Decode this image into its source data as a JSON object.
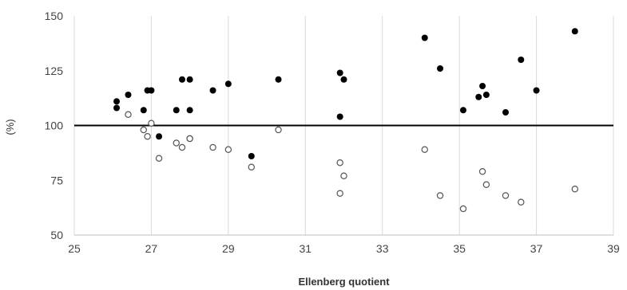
{
  "chart_data": {
    "type": "scatter",
    "title": "",
    "xlabel": "Ellenberg quotient",
    "ylabel": "(%)",
    "xlim": [
      25,
      39
    ],
    "ylim": [
      50,
      150
    ],
    "x_ticks": [
      "25",
      "27",
      "29",
      "31",
      "33",
      "35",
      "37",
      "39"
    ],
    "y_ticks": [
      "50",
      "75",
      "100",
      "125",
      "150"
    ],
    "grid": {
      "vertical": true,
      "horizontal": false
    },
    "reference_line": {
      "y": 100,
      "color": "#000000"
    },
    "series": [
      {
        "style": "filled",
        "color": "#000000",
        "points": [
          {
            "x": 26.1,
            "y": 111
          },
          {
            "x": 26.1,
            "y": 108
          },
          {
            "x": 26.4,
            "y": 114
          },
          {
            "x": 26.8,
            "y": 107
          },
          {
            "x": 26.9,
            "y": 116
          },
          {
            "x": 27.0,
            "y": 116
          },
          {
            "x": 27.2,
            "y": 95
          },
          {
            "x": 27.65,
            "y": 107
          },
          {
            "x": 27.8,
            "y": 121
          },
          {
            "x": 28.0,
            "y": 121
          },
          {
            "x": 28.0,
            "y": 107
          },
          {
            "x": 28.6,
            "y": 116
          },
          {
            "x": 29.0,
            "y": 119
          },
          {
            "x": 29.6,
            "y": 86
          },
          {
            "x": 30.3,
            "y": 121
          },
          {
            "x": 31.9,
            "y": 124
          },
          {
            "x": 31.9,
            "y": 104
          },
          {
            "x": 32.0,
            "y": 121
          },
          {
            "x": 34.1,
            "y": 140
          },
          {
            "x": 34.5,
            "y": 126
          },
          {
            "x": 35.1,
            "y": 107
          },
          {
            "x": 35.5,
            "y": 113
          },
          {
            "x": 35.6,
            "y": 118
          },
          {
            "x": 35.7,
            "y": 114
          },
          {
            "x": 36.2,
            "y": 106
          },
          {
            "x": 36.6,
            "y": 130
          },
          {
            "x": 37.0,
            "y": 116
          },
          {
            "x": 38.0,
            "y": 143
          }
        ]
      },
      {
        "style": "hollow",
        "color": "#000000",
        "points": [
          {
            "x": 26.4,
            "y": 105
          },
          {
            "x": 26.8,
            "y": 98
          },
          {
            "x": 26.9,
            "y": 95
          },
          {
            "x": 27.0,
            "y": 101
          },
          {
            "x": 27.2,
            "y": 85
          },
          {
            "x": 27.65,
            "y": 92
          },
          {
            "x": 27.8,
            "y": 90
          },
          {
            "x": 28.0,
            "y": 94
          },
          {
            "x": 28.0,
            "y": 94
          },
          {
            "x": 28.6,
            "y": 90
          },
          {
            "x": 29.0,
            "y": 89
          },
          {
            "x": 29.6,
            "y": 81
          },
          {
            "x": 30.3,
            "y": 98
          },
          {
            "x": 31.9,
            "y": 83
          },
          {
            "x": 32.0,
            "y": 77
          },
          {
            "x": 31.9,
            "y": 69
          },
          {
            "x": 34.1,
            "y": 89
          },
          {
            "x": 34.5,
            "y": 68
          },
          {
            "x": 35.1,
            "y": 62
          },
          {
            "x": 35.6,
            "y": 79
          },
          {
            "x": 35.7,
            "y": 73
          },
          {
            "x": 36.2,
            "y": 68
          },
          {
            "x": 36.6,
            "y": 65
          },
          {
            "x": 38.0,
            "y": 71
          }
        ]
      }
    ]
  }
}
